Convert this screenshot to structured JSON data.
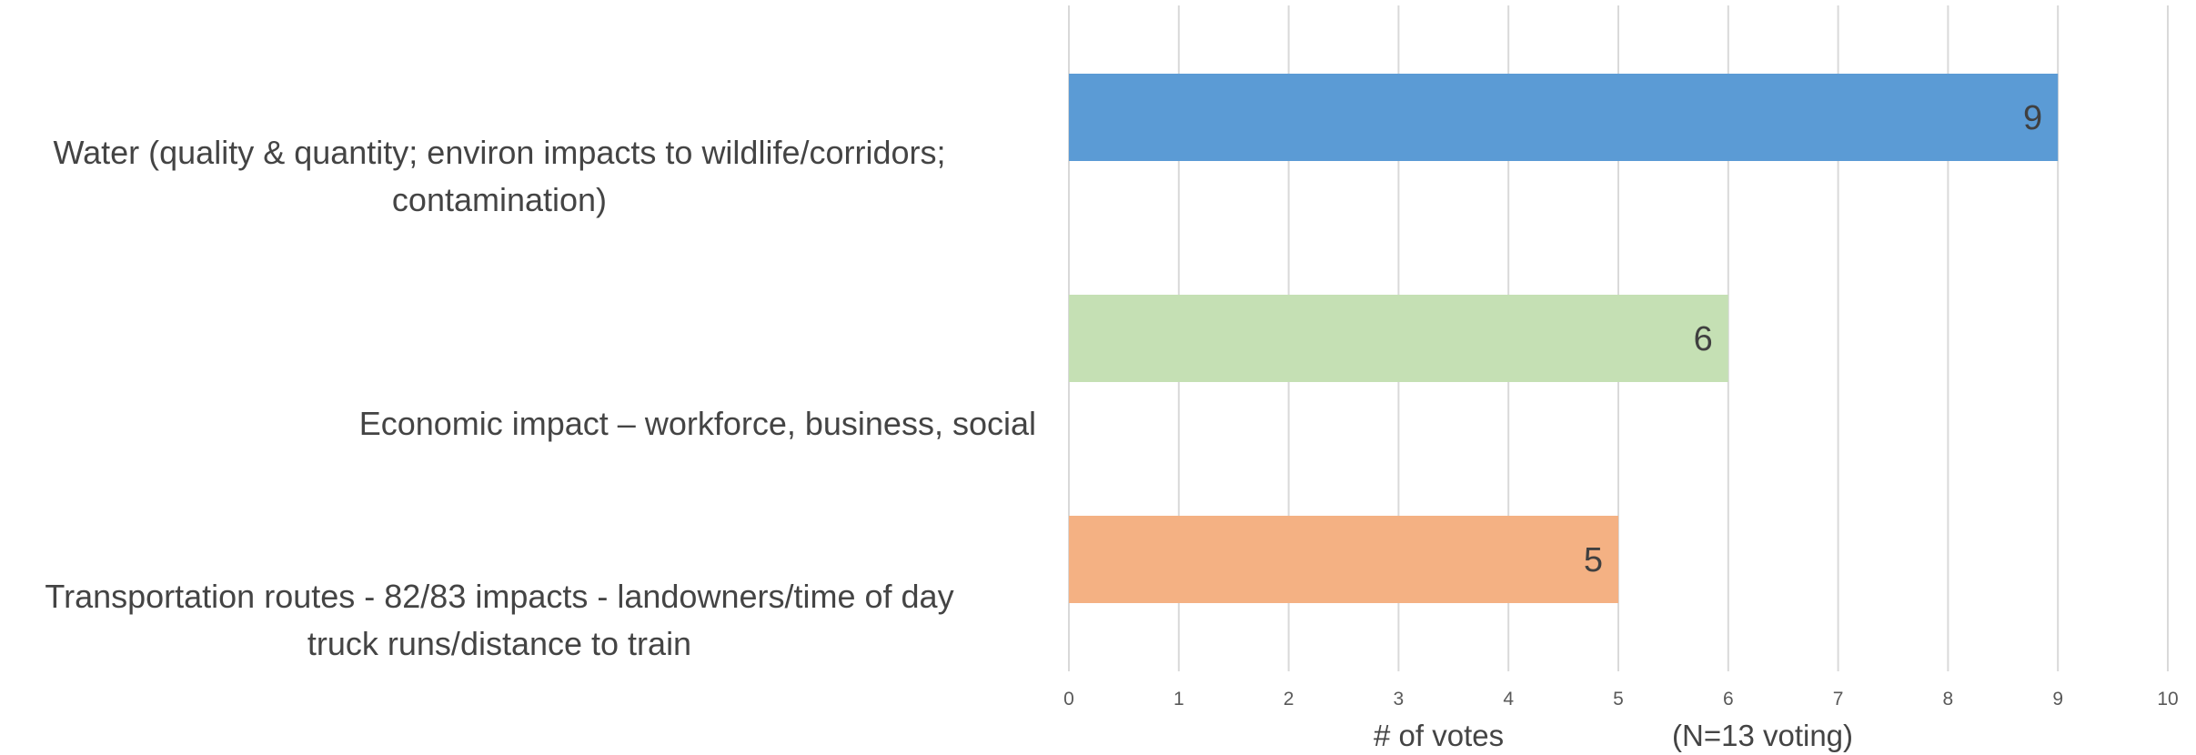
{
  "chart_data": {
    "type": "bar",
    "orientation": "horizontal",
    "categories": [
      "Water (quality & quantity; environ impacts to wildlife/corridors; contamination)",
      "Economic impact –  workforce, business, social",
      "Transportation routes -  82/83 impacts - landowners/time of day truck runs/distance to train"
    ],
    "category_lines": [
      [
        "Water (quality & quantity; environ impacts to wildlife/corridors;",
        "contamination)"
      ],
      [
        "Economic impact –  workforce, business, social"
      ],
      [
        "Transportation routes -  82/83 impacts - landowners/time of day",
        "truck runs/distance to train"
      ]
    ],
    "values": [
      9,
      6,
      5
    ],
    "data_labels": [
      "9",
      "6",
      "5"
    ],
    "bar_colors": [
      "#5b9bd5",
      "#c5e0b4",
      "#f4b183"
    ],
    "xlabel": "# of votes",
    "xlabel_note": "(N=13 voting)",
    "xlim": [
      0,
      10
    ],
    "xticks": [
      "0",
      "1",
      "2",
      "3",
      "4",
      "5",
      "6",
      "7",
      "8",
      "9",
      "10"
    ],
    "grid": true,
    "legend": "none"
  }
}
